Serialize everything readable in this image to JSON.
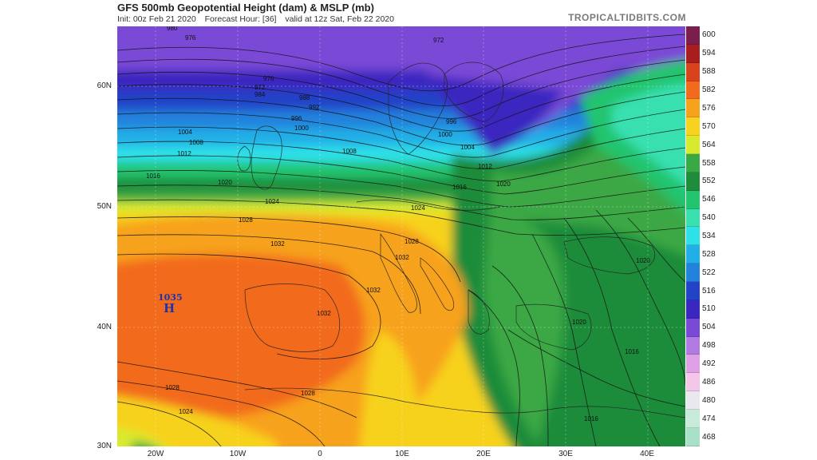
{
  "header": {
    "title": "GFS 500mb Geopotential Height (dam) & MSLP (mb)",
    "init": "Init: 00z Feb 21 2020",
    "forecast_hour": "Forecast Hour: [36]",
    "valid": "valid at 12z Sat, Feb 22 2020",
    "brand": "TROPICALTIDBITS.COM"
  },
  "lat_labels": [
    "60N",
    "50N",
    "40N",
    "30N"
  ],
  "lon_labels": [
    "20W",
    "10W",
    "0",
    "10E",
    "20E",
    "30E",
    "40E"
  ],
  "colorbar": {
    "labels": [
      "600",
      "594",
      "588",
      "582",
      "576",
      "570",
      "564",
      "558",
      "552",
      "546",
      "540",
      "534",
      "528",
      "522",
      "516",
      "510",
      "504",
      "498",
      "492",
      "486",
      "480",
      "474",
      "468"
    ],
    "colors": [
      "#7b1e4e",
      "#a81e1e",
      "#d8431b",
      "#f26a1b",
      "#f7a21d",
      "#f7d21e",
      "#d8ea2e",
      "#3aa845",
      "#1e8c3a",
      "#22c46e",
      "#38e0b0",
      "#2ee0e8",
      "#22aee6",
      "#2282dc",
      "#2242c8",
      "#3a26c0",
      "#7a4ad6",
      "#b07ae0",
      "#e0a0e8",
      "#f4c6ea",
      "#e8e8ee",
      "#c8ead8",
      "#a8e0c8"
    ]
  },
  "high_pressure": {
    "value": "1035",
    "symbol": "H"
  },
  "isobar_labels": [
    "980",
    "976",
    "972",
    "972",
    "976",
    "984",
    "988",
    "992",
    "996",
    "1000",
    "1004",
    "1008",
    "1012",
    "1016",
    "1020",
    "1024",
    "1028",
    "1032",
    "1032",
    "1032",
    "1028",
    "1028",
    "1024",
    "1016",
    "1020",
    "1028",
    "1032",
    "1024",
    "1020",
    "1016",
    "1020",
    "1016",
    "1012",
    "1008",
    "1004",
    "1000",
    "996"
  ],
  "colors": {
    "background": "#ffffff",
    "brand": "#7a7a7a",
    "high": "#2233aa"
  }
}
